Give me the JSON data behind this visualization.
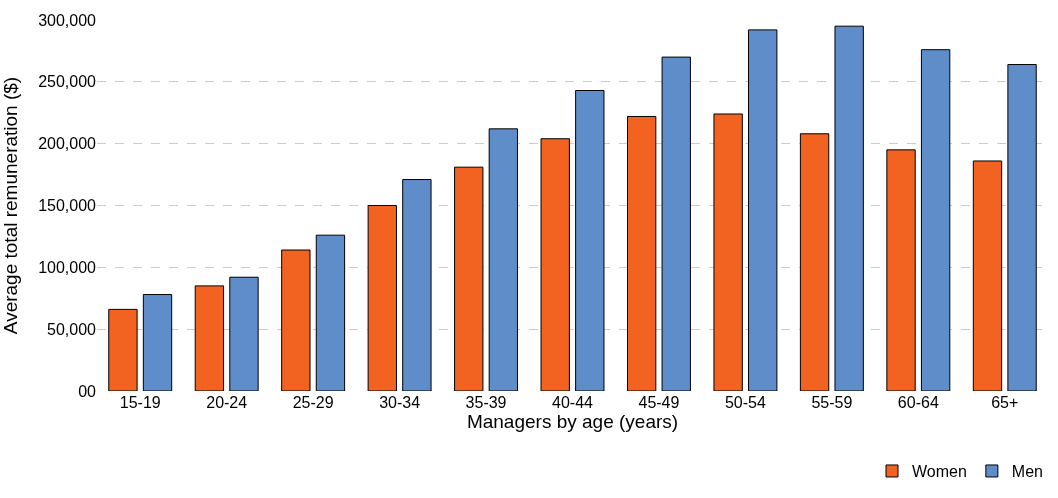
{
  "chart_data": {
    "type": "bar",
    "xlabel": "Managers by age (years)",
    "ylabel": "Average total remuneration ($)",
    "categories": [
      "15-19",
      "20-24",
      "25-29",
      "30-34",
      "35-39",
      "40-44",
      "45-49",
      "50-54",
      "55-59",
      "60-64",
      "65+"
    ],
    "series": [
      {
        "name": "Women",
        "color": "#f26322",
        "values": [
          66000,
          85000,
          114000,
          150000,
          181000,
          204000,
          222000,
          224000,
          208000,
          195000,
          186000
        ]
      },
      {
        "name": "Men",
        "color": "#5f8dca",
        "values": [
          78000,
          92000,
          126000,
          171000,
          212000,
          243000,
          270000,
          292000,
          295000,
          276000,
          264000
        ]
      }
    ],
    "ylim": [
      0,
      300000
    ],
    "yticks": [
      {
        "value": 0,
        "label": "00"
      },
      {
        "value": 50000,
        "label": "50,000"
      },
      {
        "value": 100000,
        "label": "100,000"
      },
      {
        "value": 150000,
        "label": "150,000"
      },
      {
        "value": 200000,
        "label": "200,000"
      },
      {
        "value": 250000,
        "label": "250,000"
      },
      {
        "value": 300000,
        "label": "300,000"
      }
    ],
    "grid": "y",
    "legend": "bottom right"
  }
}
